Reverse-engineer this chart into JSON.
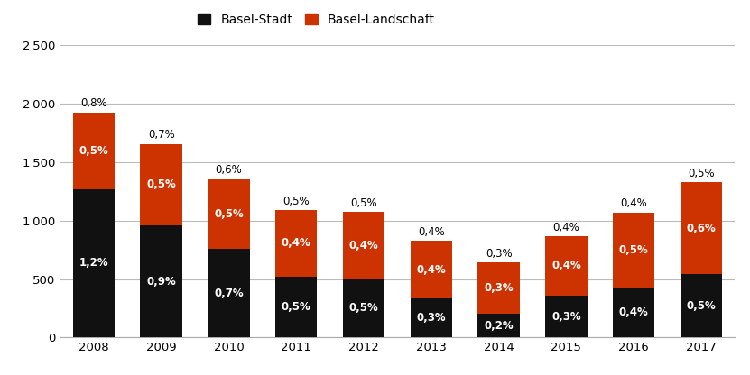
{
  "years": [
    2008,
    2009,
    2010,
    2011,
    2012,
    2013,
    2014,
    2015,
    2016,
    2017
  ],
  "basel_stadt": [
    1270,
    960,
    755,
    520,
    500,
    335,
    200,
    360,
    425,
    540
  ],
  "basel_landschaft": [
    655,
    695,
    600,
    570,
    575,
    490,
    440,
    505,
    645,
    790
  ],
  "stadt_pct": [
    "1,2%",
    "0,9%",
    "0,7%",
    "0,5%",
    "0,5%",
    "0,3%",
    "0,2%",
    "0,3%",
    "0,4%",
    "0,5%"
  ],
  "land_pct": [
    "0,5%",
    "0,5%",
    "0,5%",
    "0,4%",
    "0,4%",
    "0,4%",
    "0,3%",
    "0,4%",
    "0,5%",
    "0,6%"
  ],
  "total_pct": [
    "0,8%",
    "0,7%",
    "0,6%",
    "0,5%",
    "0,5%",
    "0,4%",
    "0,3%",
    "0,4%",
    "0,4%",
    "0,5%"
  ],
  "color_stadt": "#111111",
  "color_land": "#cc3300",
  "ylim": [
    0,
    2500
  ],
  "yticks": [
    0,
    500,
    1000,
    1500,
    2000,
    2500
  ],
  "legend_label_stadt": "Basel-Stadt",
  "legend_label_land": "Basel-Landschaft",
  "background_color": "#ffffff",
  "grid_color": "#bbbbbb",
  "bar_width": 0.62,
  "fontsize_pct": 8.5,
  "fontsize_axis": 9.5,
  "fontsize_legend": 10
}
